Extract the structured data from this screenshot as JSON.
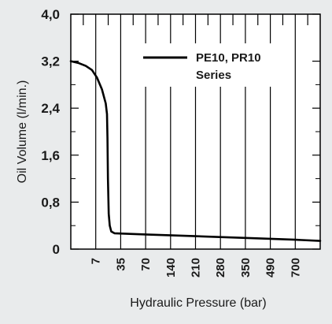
{
  "chart_data": {
    "type": "line",
    "title": "",
    "xlabel": "Hydraulic Pressure (bar)",
    "ylabel": "Oil Volume (l/min.)",
    "x_tick_labels": [
      "7",
      "35",
      "70",
      "140",
      "210",
      "280",
      "350",
      "490",
      "700"
    ],
    "y_tick_labels": [
      "0",
      "0,8",
      "1,6",
      "2,4",
      "3,2",
      "4,0"
    ],
    "ylim": [
      0,
      4.0
    ],
    "grid": "vertical",
    "legend_placement": "top-right",
    "series": [
      {
        "name": "PE10, PR10 Series",
        "color": "#000000",
        "points": [
          [
            0,
            3.2
          ],
          [
            0.3,
            3.17
          ],
          [
            0.6,
            3.12
          ],
          [
            0.85,
            3.05
          ],
          [
            1.05,
            2.92
          ],
          [
            1.25,
            2.72
          ],
          [
            1.4,
            2.48
          ],
          [
            1.45,
            2.3
          ],
          [
            1.47,
            1.9
          ],
          [
            1.49,
            1.2
          ],
          [
            1.52,
            0.6
          ],
          [
            1.56,
            0.4
          ],
          [
            1.62,
            0.3
          ],
          [
            1.75,
            0.27
          ],
          [
            3,
            0.25
          ],
          [
            5,
            0.22
          ],
          [
            7,
            0.19
          ],
          [
            9,
            0.16
          ],
          [
            10,
            0.14
          ]
        ]
      }
    ]
  }
}
